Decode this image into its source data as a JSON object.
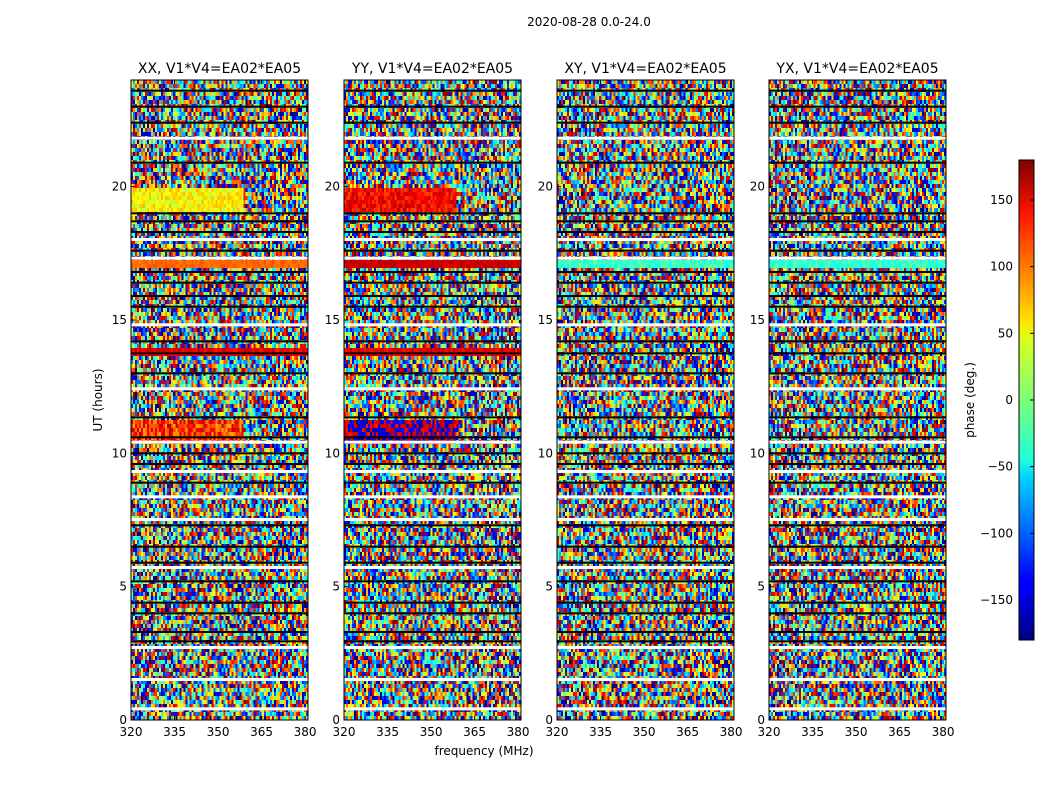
{
  "chart_data": {
    "type": "heatmap",
    "title": "2020-08-28 0.0-24.0",
    "xlabel": "frequency (MHz)",
    "ylabel": "UT (hours)",
    "xlim": [
      320,
      381
    ],
    "ylim": [
      0,
      24
    ],
    "xticks": [
      "320",
      "335",
      "350",
      "365",
      "380"
    ],
    "xtick_values": [
      320,
      335,
      350,
      365,
      380
    ],
    "yticks": [
      "0",
      "5",
      "10",
      "15",
      "20"
    ],
    "ytick_values": [
      0,
      5,
      10,
      15,
      20
    ],
    "panels": [
      {
        "title": "XX, V1*V4=EA02*EA05"
      },
      {
        "title": "YY, V1*V4=EA02*EA05"
      },
      {
        "title": "XY, V1*V4=EA02*EA05"
      },
      {
        "title": "YX, V1*V4=EA02*EA05"
      }
    ],
    "colorbar": {
      "label": "phase (deg.)",
      "range": [
        -180,
        180
      ],
      "ticks": [
        "−150",
        "−100",
        "−50",
        "0",
        "50",
        "100",
        "150"
      ],
      "tick_values": [
        -150,
        -100,
        -50,
        0,
        50,
        100,
        150
      ],
      "colormap": "jet"
    },
    "colors": {
      "flagged_gap": "#ffffff",
      "flagged_line": "#000000"
    }
  }
}
